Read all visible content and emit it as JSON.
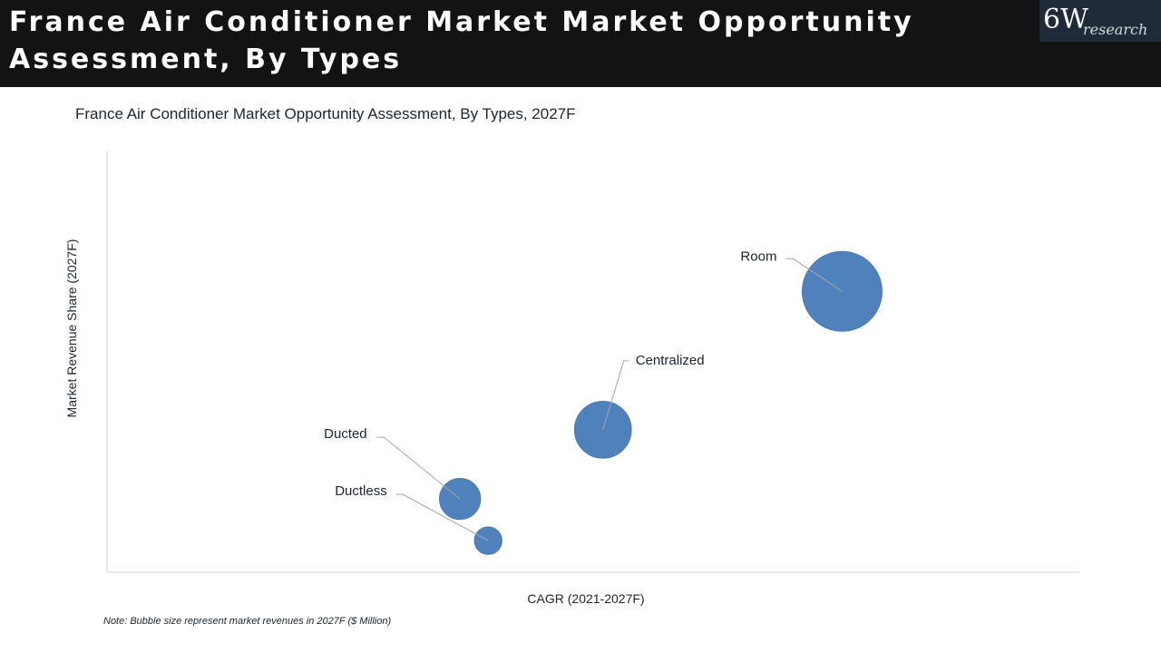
{
  "header": {
    "title": "France Air Conditioner Market Market Opportunity Assessment, By Types",
    "logo_main": "6W",
    "logo_sub": "research"
  },
  "colors": {
    "header_bg": "#131313",
    "bubble_fill": "#4f81bd",
    "axis": "#d0d0d0",
    "leader": "#a6a6a6"
  },
  "chart_data": {
    "type": "bubble",
    "title": "France Air Conditioner Market Opportunity Assessment, By Types, 2027F",
    "xlabel": "CAGR (2021-2027F)",
    "ylabel": "Market Revenue Share (2027F)",
    "xlim": [
      0,
      100
    ],
    "ylim": [
      0,
      100
    ],
    "ticks_shown": false,
    "grid": false,
    "note": "Note: Bubble size represent market revenues in 2027F ($ Million)",
    "series": [
      {
        "name": "Room",
        "x": 75.6,
        "y": 66.6,
        "size": 7560
      },
      {
        "name": "Centralized",
        "x": 51.0,
        "y": 33.8,
        "size": 3840
      },
      {
        "name": "Ducted",
        "x": 36.3,
        "y": 17.4,
        "size": 2000
      },
      {
        "name": "Ductless",
        "x": 39.2,
        "y": 7.5,
        "size": 900
      }
    ]
  }
}
